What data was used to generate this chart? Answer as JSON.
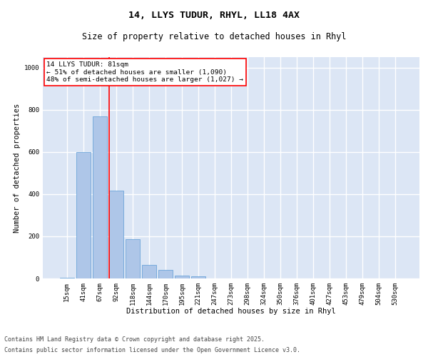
{
  "title_line1": "14, LLYS TUDUR, RHYL, LL18 4AX",
  "title_line2": "Size of property relative to detached houses in Rhyl",
  "xlabel": "Distribution of detached houses by size in Rhyl",
  "ylabel": "Number of detached properties",
  "categories": [
    "15sqm",
    "41sqm",
    "67sqm",
    "92sqm",
    "118sqm",
    "144sqm",
    "170sqm",
    "195sqm",
    "221sqm",
    "247sqm",
    "273sqm",
    "298sqm",
    "324sqm",
    "350sqm",
    "376sqm",
    "401sqm",
    "427sqm",
    "453sqm",
    "479sqm",
    "504sqm",
    "530sqm"
  ],
  "values": [
    5,
    600,
    770,
    415,
    185,
    65,
    40,
    15,
    10,
    0,
    0,
    0,
    0,
    0,
    0,
    0,
    0,
    0,
    0,
    0,
    0
  ],
  "bar_color": "#aec6e8",
  "bar_edge_color": "#5b9bd5",
  "vline_color": "red",
  "annotation_text": "14 LLYS TUDUR: 81sqm\n← 51% of detached houses are smaller (1,090)\n48% of semi-detached houses are larger (1,027) →",
  "annotation_box_color": "red",
  "ylim": [
    0,
    1050
  ],
  "yticks": [
    0,
    200,
    400,
    600,
    800,
    1000
  ],
  "background_color": "#dce6f5",
  "grid_color": "white",
  "footer_line1": "Contains HM Land Registry data © Crown copyright and database right 2025.",
  "footer_line2": "Contains public sector information licensed under the Open Government Licence v3.0.",
  "title_fontsize": 9.5,
  "subtitle_fontsize": 8.5,
  "axis_label_fontsize": 7.5,
  "tick_fontsize": 6.5,
  "annotation_fontsize": 6.8,
  "footer_fontsize": 6.0
}
